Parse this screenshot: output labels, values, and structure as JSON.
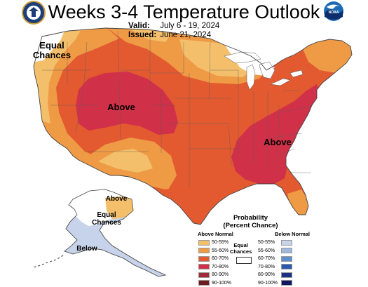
{
  "header": {
    "title": "Weeks 3-4 Temperature Outlook",
    "valid_label": "Valid:",
    "valid_value": "July 6 - 19, 2024",
    "issued_label": "Issued:",
    "issued_value": "June 21, 2024"
  },
  "logos": {
    "left": "department-of-commerce-seal",
    "right": "noaa-logo",
    "right_text": "NOAA"
  },
  "map_labels": {
    "equal_chances_west": "Equal\nChances",
    "above_west": "Above",
    "above_east": "Above",
    "above_alaska": "Above",
    "equal_chances_alaska": "Equal\nChances",
    "below_alaska": "Below"
  },
  "legend": {
    "title": "Probability\n(Percent Chance)",
    "above_header": "Above Normal",
    "below_header": "Below Normal",
    "equal_label": "Equal\nChances",
    "above": [
      {
        "label": "50-55%",
        "color": "#f4bf6b"
      },
      {
        "label": "55-60%",
        "color": "#ef9a45"
      },
      {
        "label": "60-70%",
        "color": "#e35a31"
      },
      {
        "label": "70-80%",
        "color": "#d13148"
      },
      {
        "label": "80-90%",
        "color": "#a42a3a"
      },
      {
        "label": "90-100%",
        "color": "#6e1a1f"
      }
    ],
    "below": [
      {
        "label": "50-55%",
        "color": "#c7d3ea"
      },
      {
        "label": "55-60%",
        "color": "#9fb8de"
      },
      {
        "label": "60-70%",
        "color": "#5d8fd0"
      },
      {
        "label": "70-80%",
        "color": "#2b57b0"
      },
      {
        "label": "80-90%",
        "color": "#1a2f86"
      },
      {
        "label": "90-100%",
        "color": "#0f1660"
      }
    ]
  },
  "colors": {
    "near_normal_50_55_above": "#f4bf6b",
    "above_55_60": "#ef9a45",
    "above_60_70": "#e35a31",
    "above_70_80": "#d13148",
    "below_50_55": "#c7d3ea",
    "equal_chances": "#ffffff"
  }
}
